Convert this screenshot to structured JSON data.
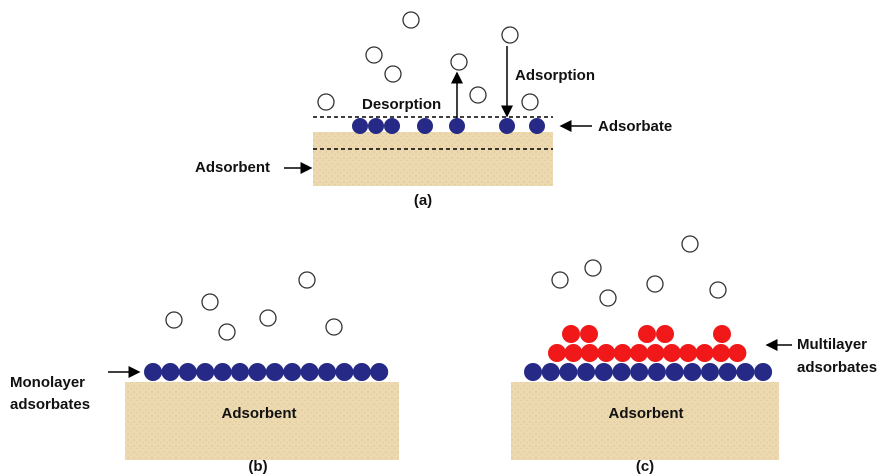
{
  "panel_a": {
    "adsorption": "Adsorption",
    "desorption": "Desorption",
    "adsorbate": "Adsorbate",
    "adsorbent": "Adsorbent",
    "caption": "(a)"
  },
  "panel_b": {
    "label_line1": "Monolayer",
    "label_line2": "adsorbates",
    "adsorbent": "Adsorbent",
    "caption": "(b)"
  },
  "panel_c": {
    "label_line1": "Multilayer",
    "label_line2": "adsorbates",
    "adsorbent": "Adsorbent",
    "caption": "(c)"
  }
}
